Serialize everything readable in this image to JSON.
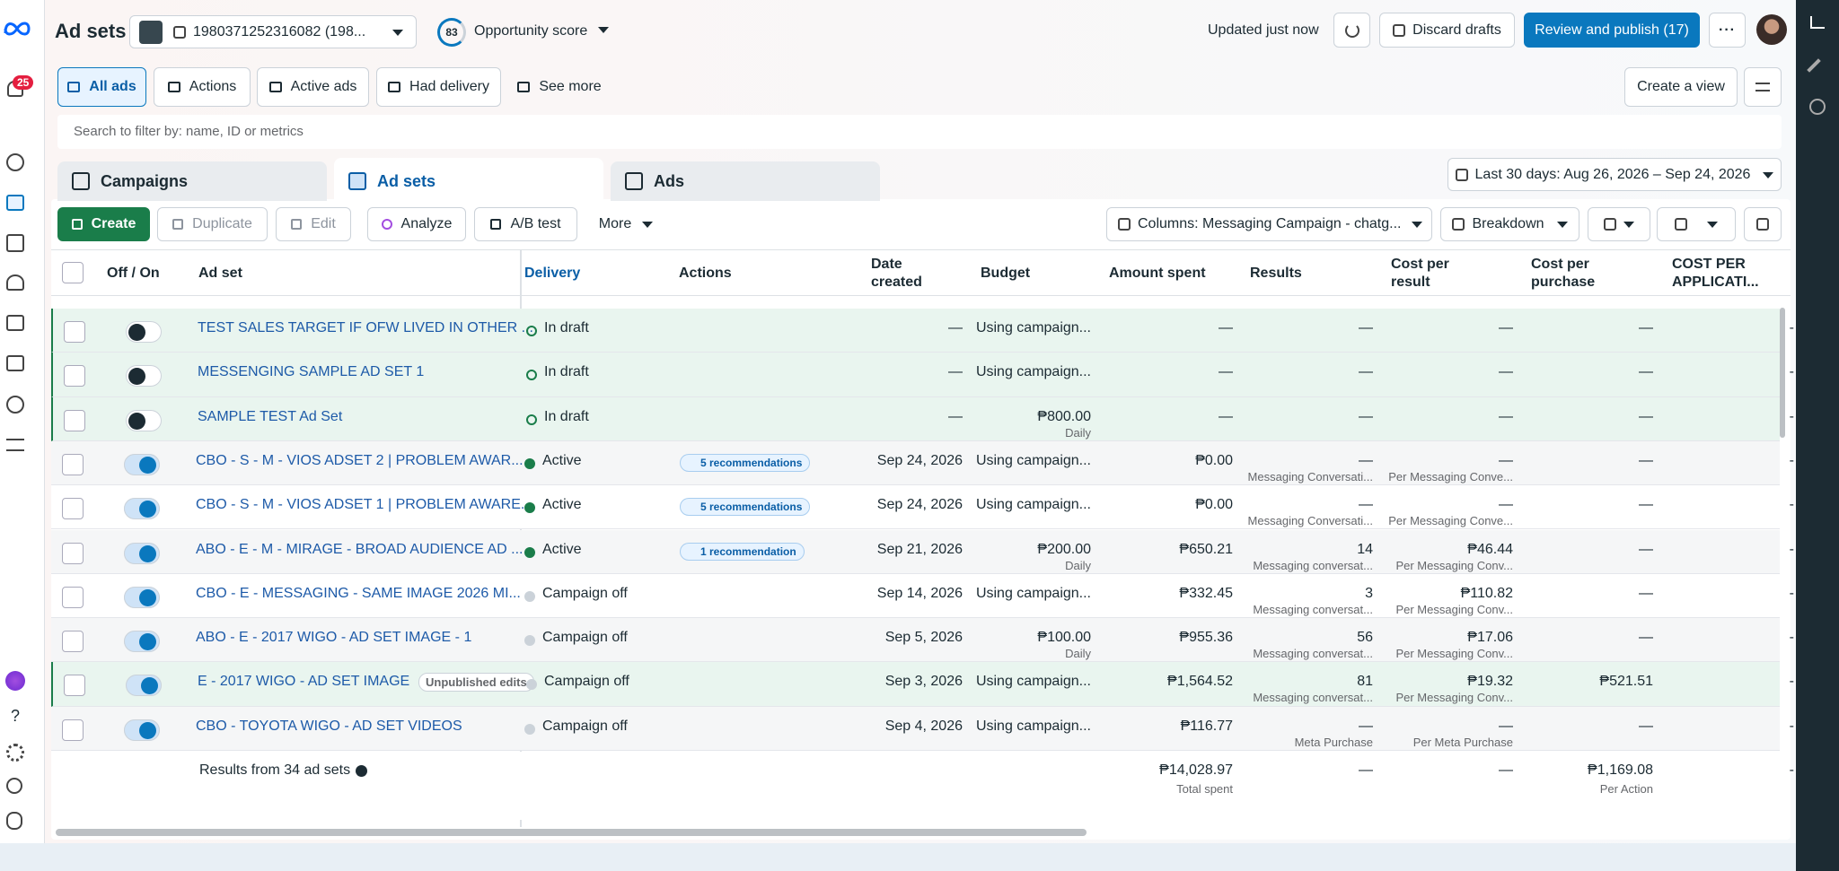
{
  "header": {
    "title": "Ad sets",
    "account": "1980371252316082 (198...",
    "score": "83",
    "score_label": "Opportunity score",
    "updated": "Updated just now",
    "discard": "Discard drafts",
    "publish": "Review and publish (17)"
  },
  "sidebar": {
    "notifications": "25",
    "help": "?"
  },
  "filters": {
    "items": [
      "All ads",
      "Actions",
      "Active ads",
      "Had delivery",
      "See more"
    ],
    "create_view": "Create a view"
  },
  "search": {
    "placeholder": "Search to filter by: name, ID or metrics"
  },
  "tabs": {
    "items": [
      "Campaigns",
      "Ad sets",
      "Ads"
    ],
    "date_range": "Last 30 days: Aug 26, 2026 – Sep 24, 2026"
  },
  "toolbar": {
    "items": [
      "Create",
      "Duplicate",
      "Edit",
      "Analyze",
      "A/B test",
      "More"
    ],
    "columns": "Columns: Messaging Campaign - chatg...",
    "breakdown": "Breakdown"
  },
  "table": {
    "columns": [
      "Off / On",
      "Ad set",
      "Delivery",
      "Actions",
      "Date created",
      "Budget",
      "Amount spent",
      "Results",
      "Cost per result",
      "Cost per purchase",
      "COST PER APPLICATI..."
    ],
    "rows": [
      {
        "name": "TEST SALES TARGET IF OFW LIVED IN OTHER ...",
        "delivery": "In draft",
        "status_color": "draft",
        "toggle": false,
        "highlight": true,
        "date": "—",
        "budget": "Using campaign...",
        "spent": "—",
        "results": "—",
        "cpr": "—",
        "cpp": "—",
        "last": "-"
      },
      {
        "name": "MESSENGING SAMPLE AD SET 1",
        "delivery": "In draft",
        "status_color": "draft",
        "toggle": false,
        "highlight": true,
        "date": "—",
        "budget": "Using campaign...",
        "spent": "—",
        "results": "—",
        "cpr": "—",
        "cpp": "—",
        "last": "-"
      },
      {
        "name": "SAMPLE TEST Ad Set",
        "delivery": "In draft",
        "status_color": "draft",
        "toggle": false,
        "highlight": true,
        "date": "—",
        "budget": "₱800.00",
        "budget_sub": "Daily",
        "spent": "—",
        "results": "—",
        "cpr": "—",
        "cpp": "—",
        "last": "-"
      },
      {
        "name": "CBO - S - M - VIOS ADSET 2 | PROBLEM AWAR...",
        "delivery": "Active",
        "status_color": "#1a7d4a",
        "toggle": true,
        "highlight": false,
        "recommendations": "5 recommendations",
        "date": "Sep 24, 2026",
        "budget": "Using campaign...",
        "spent": "₱0.00",
        "results": "—",
        "results_sub": "Messaging Conversati...",
        "cpr": "—",
        "cpr_sub": "Per Messaging Conve...",
        "cpp": "—",
        "last": "-"
      },
      {
        "name": "CBO - S - M - VIOS ADSET 1 | PROBLEM AWARE...",
        "delivery": "Active",
        "status_color": "#1a7d4a",
        "toggle": true,
        "highlight": false,
        "recommendations": "5 recommendations",
        "date": "Sep 24, 2026",
        "budget": "Using campaign...",
        "spent": "₱0.00",
        "results": "—",
        "results_sub": "Messaging Conversati...",
        "cpr": "—",
        "cpr_sub": "Per Messaging Conve...",
        "cpp": "—",
        "last": "-"
      },
      {
        "name": "ABO - E - M - MIRAGE - BROAD AUDIENCE AD ...",
        "delivery": "Active",
        "status_color": "#1a7d4a",
        "toggle": true,
        "highlight": false,
        "recommendations": "1 recommendation",
        "date": "Sep 21, 2026",
        "budget": "₱200.00",
        "budget_sub": "Daily",
        "spent": "₱650.21",
        "results": "14",
        "results_sub": "Messaging conversat...",
        "cpr": "₱46.44",
        "cpr_sub": "Per Messaging Conv...",
        "cpp": "—",
        "last": "-"
      },
      {
        "name": "CBO - E - MESSAGING - SAME IMAGE 2026 MI...",
        "delivery": "Campaign off",
        "status_color": "#cbd2d9",
        "toggle": true,
        "highlight": false,
        "date": "Sep 14, 2026",
        "budget": "Using campaign...",
        "spent": "₱332.45",
        "results": "3",
        "results_sub": "Messaging conversat...",
        "cpr": "₱110.82",
        "cpr_sub": "Per Messaging Conv...",
        "cpp": "—",
        "last": "-"
      },
      {
        "name": "ABO - E - 2017 WIGO - AD SET IMAGE - 1",
        "delivery": "Campaign off",
        "status_color": "#cbd2d9",
        "toggle": true,
        "highlight": false,
        "date": "Sep 5, 2026",
        "budget": "₱100.00",
        "budget_sub": "Daily",
        "spent": "₱955.36",
        "results": "56",
        "results_sub": "Messaging conversat...",
        "cpr": "₱17.06",
        "cpr_sub": "Per Messaging Conv...",
        "cpp": "—",
        "last": "-"
      },
      {
        "name": "E - 2017 WIGO - AD SET IMAGE",
        "badge": "Unpublished edits",
        "delivery": "Campaign off",
        "status_color": "#cbd2d9",
        "toggle": true,
        "highlight": true,
        "date": "Sep 3, 2026",
        "budget": "Using campaign...",
        "spent": "₱1,564.52",
        "results": "81",
        "results_sub": "Messaging conversat...",
        "cpr": "₱19.32",
        "cpr_sub": "Per Messaging Conv...",
        "cpp": "₱521.51",
        "last": "-"
      },
      {
        "name": "CBO - TOYOTA WIGO - AD SET VIDEOS",
        "delivery": "Campaign off",
        "status_color": "#cbd2d9",
        "toggle": true,
        "highlight": false,
        "date": "Sep 4, 2026",
        "budget": "Using campaign...",
        "spent": "₱116.77",
        "results": "—",
        "results_sub": "Meta Purchase",
        "cpr": "—",
        "cpr_sub": "Per Meta Purchase",
        "cpp": "—",
        "last": "-"
      }
    ],
    "footer": {
      "label": "Results from 34 ad sets",
      "spent": "₱14,028.97",
      "spent_sub": "Total spent",
      "results": "—",
      "cpr": "—",
      "cpp": "₱1,169.08",
      "cpp_sub": "Per Action",
      "last": "-"
    }
  }
}
